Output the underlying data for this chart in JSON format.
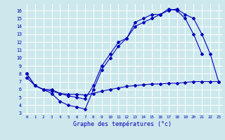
{
  "title": "Graphe des températures (°c)",
  "bg_color": "#cce8ec",
  "line_color": "#0000bb",
  "grid_color": "#ffffff",
  "xlim": [
    -0.5,
    23.5
  ],
  "ylim": [
    2.8,
    16.8
  ],
  "xticks": [
    0,
    1,
    2,
    3,
    4,
    5,
    6,
    7,
    8,
    9,
    10,
    11,
    12,
    13,
    14,
    15,
    16,
    17,
    18,
    19,
    20,
    21,
    22,
    23
  ],
  "yticks": [
    3,
    4,
    5,
    6,
    7,
    8,
    9,
    10,
    11,
    12,
    13,
    14,
    15,
    16
  ],
  "line1_x": [
    0,
    1,
    2,
    3,
    4,
    5,
    6,
    7,
    8,
    9,
    10,
    11,
    12,
    13,
    14,
    15,
    16,
    17,
    18,
    19,
    20,
    21
  ],
  "line1_y": [
    8.0,
    6.5,
    6.0,
    5.5,
    4.5,
    4.0,
    3.8,
    3.5,
    6.0,
    8.5,
    10.0,
    11.5,
    12.5,
    14.0,
    14.5,
    15.0,
    15.5,
    16.2,
    16.0,
    15.0,
    13.0,
    10.5
  ],
  "line2_x": [
    0,
    1,
    2,
    3,
    4,
    5,
    6,
    7,
    8,
    9,
    10,
    11,
    12,
    13,
    14,
    15,
    16,
    17,
    18,
    19,
    20,
    21,
    22,
    23
  ],
  "line2_y": [
    8.0,
    6.5,
    6.0,
    6.0,
    5.5,
    5.2,
    5.0,
    4.8,
    6.5,
    9.0,
    10.5,
    12.0,
    12.5,
    14.5,
    15.0,
    15.5,
    15.5,
    16.0,
    16.2,
    15.5,
    15.0,
    13.0,
    10.5,
    7.0
  ],
  "line3_x": [
    0,
    1,
    2,
    3,
    4,
    5,
    6,
    7,
    8,
    9,
    10,
    11,
    12,
    13,
    14,
    15,
    16,
    17,
    18,
    19,
    20,
    21,
    22,
    23
  ],
  "line3_y": [
    7.5,
    6.5,
    6.0,
    5.8,
    5.5,
    5.4,
    5.4,
    5.3,
    5.5,
    5.8,
    6.0,
    6.2,
    6.4,
    6.5,
    6.6,
    6.7,
    6.7,
    6.8,
    6.8,
    6.9,
    7.0,
    7.0,
    7.0,
    7.0
  ]
}
